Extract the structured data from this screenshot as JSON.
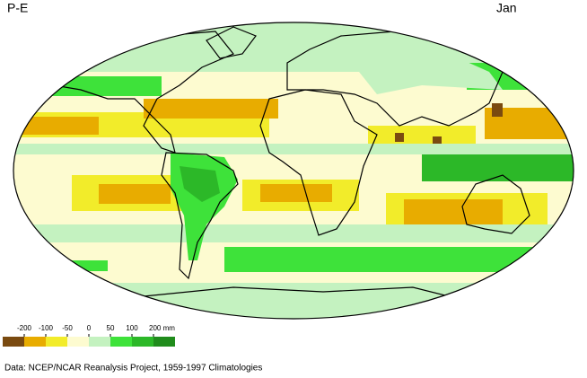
{
  "header": {
    "title": "P-E",
    "month": "Jan"
  },
  "legend": {
    "colors": [
      "#7a4a10",
      "#e8ac00",
      "#f2ec2a",
      "#fdfbd0",
      "#c4f2c0",
      "#3ee23a",
      "#2cb828",
      "#208c1c"
    ],
    "ticks": [
      -200,
      -100,
      -50,
      0,
      50,
      100,
      {
        "value": 200,
        "label": "200 mm"
      }
    ]
  },
  "footer": "Data: NCEP/NCAR Reanalysis Project, 1959-1997 Climatologies"
}
